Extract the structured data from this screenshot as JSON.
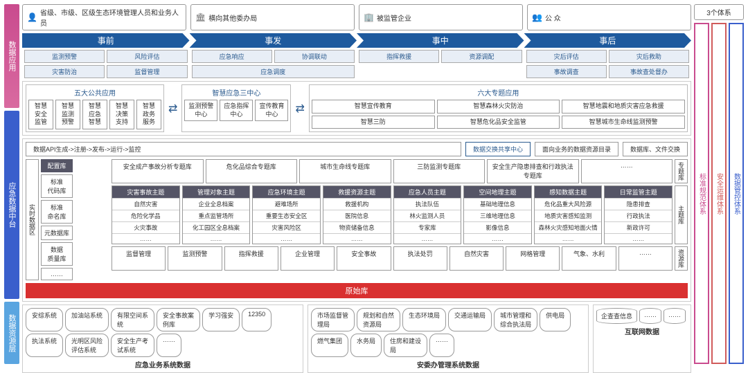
{
  "colors": {
    "left1": "#c94b8e",
    "left1b": "#d96aa0",
    "left2": "#3a5fcc",
    "left3": "#5aa5e0",
    "rc1": "#c94b8e",
    "rc2": "#d05a5a",
    "rc3": "#3a5fcc"
  },
  "users": [
    {
      "icon": "👤",
      "label": "省级、市级、区级生态环境管理人员和业务人员"
    },
    {
      "icon": "🏛",
      "label": "横向其他委办局"
    },
    {
      "icon": "🏢",
      "label": "被监管企业"
    },
    {
      "icon": "👥",
      "label": "公 众"
    }
  ],
  "phases": [
    {
      "name": "事前",
      "items": [
        "监测预警",
        "风险评估",
        "灾害防治",
        "监督管理"
      ]
    },
    {
      "name": "事发",
      "items": [
        "应急响应",
        "协调联动",
        "应急调度"
      ]
    },
    {
      "name": "事中",
      "items": [
        "指挥救援",
        "资源调配"
      ]
    },
    {
      "name": "事后",
      "items": [
        "灾后评估",
        "灾后救助",
        "事故调查",
        "事故查处督办"
      ]
    }
  ],
  "apps": {
    "g1": {
      "title": "五大公共应用",
      "items": [
        "智慧\n安全监管",
        "智慧\n监测预警",
        "智慧\n应急智慧",
        "智慧\n决策支持",
        "智慧\n政务服务"
      ]
    },
    "g2": {
      "title": "智慧应急三中心",
      "items": [
        "监测预警\n中心",
        "应急指挥\n中心",
        "宣传教育\n中心"
      ]
    },
    "g3": {
      "title": "六大专题应用",
      "items": [
        "智慧宣传教育",
        "智慧森林火灾防治",
        "智慧地震和地质灾害应急救援",
        "智慧三防",
        "智慧危化品安全监管",
        "智慧城市生命线监测预警"
      ]
    }
  },
  "left": {
    "l1": "数据应用",
    "l2": "应急数据中台",
    "l3": "数据资源层"
  },
  "mid": {
    "top": [
      "数据API生成->注册->发布->运行->监控",
      "数据交换共享中心",
      "面向业务的数据资源目录",
      "数据库、文件交换"
    ],
    "leftHdr": "配置库",
    "leftItems": [
      "标准\n代码库",
      "标准\n命名库",
      "元数据库",
      "数据\n质量库",
      "……"
    ],
    "leftTag": "实时数据区",
    "topics": [
      "安全成产事故分析专题库",
      "危化品综合专题库",
      "城市生命线专题库",
      "三防监测专题库",
      "安全生产隐患排查和行政执法专题库",
      "……"
    ],
    "topicTag": "专题库",
    "themes": [
      {
        "h": "灾害事故主题",
        "i": [
          "自然灾害",
          "危险化学品",
          "火灾事故",
          "……"
        ]
      },
      {
        "h": "管理对象主题",
        "i": [
          "企业全息档案",
          "重点监管场所",
          "化工园区全息档案",
          "……"
        ]
      },
      {
        "h": "应急环境主题",
        "i": [
          "避难场所",
          "重要生态安全区",
          "灾害风险区",
          "……"
        ]
      },
      {
        "h": "救援资源主题",
        "i": [
          "救援机构",
          "医院信息",
          "物资储备信息",
          "……"
        ]
      },
      {
        "h": "应急人员主题",
        "i": [
          "执法队伍",
          "林火监测人员",
          "专家库",
          "……"
        ]
      },
      {
        "h": "空间地理主题",
        "i": [
          "基础地理信息",
          "三维地理信息",
          "影像信息",
          "……"
        ]
      },
      {
        "h": "感知数据主题",
        "i": [
          "危化品重大风险源",
          "地质灾害感知监测",
          "森林火灾感知地面火情",
          "……"
        ]
      },
      {
        "h": "日常监管主题",
        "i": [
          "隐患排查",
          "行政执法",
          "新政许可",
          "……"
        ]
      }
    ],
    "themeTag": "主题库",
    "res": [
      "监督管理",
      "监测预警",
      "指挥救援",
      "企业管理",
      "安全事故",
      "执法处罚",
      "自然灾害",
      "网格管理",
      "气象、水利",
      "……"
    ],
    "resTag": "资源库",
    "raw": "原始库"
  },
  "bottom": {
    "g1": {
      "title": "应急业务系统数据",
      "items": [
        "安综系统",
        "加油站系统",
        "有限空间系\n统",
        "安全事故案\n例库",
        "学习强安",
        "12350",
        "执法系统",
        "光明区风险\n评估系统",
        "安全生产考\n试系统",
        "……"
      ]
    },
    "g2": {
      "title": "安委办管理系统数据",
      "items": [
        "市场监督管\n理局",
        "规划和自然\n资源局",
        "生态环境局",
        "交通运输局",
        "城市管理和\n综合执法局",
        "供电局",
        "燃气集团",
        "水务局",
        "住房和建设\n局",
        "……"
      ]
    },
    "g3": {
      "title": "互联网数据",
      "items": [
        "企查查信息",
        "……",
        "……"
      ]
    }
  },
  "right": {
    "top": "3个体系",
    "cols": [
      "标准规范体系",
      "安全运维体系",
      "数据管控体系"
    ]
  }
}
